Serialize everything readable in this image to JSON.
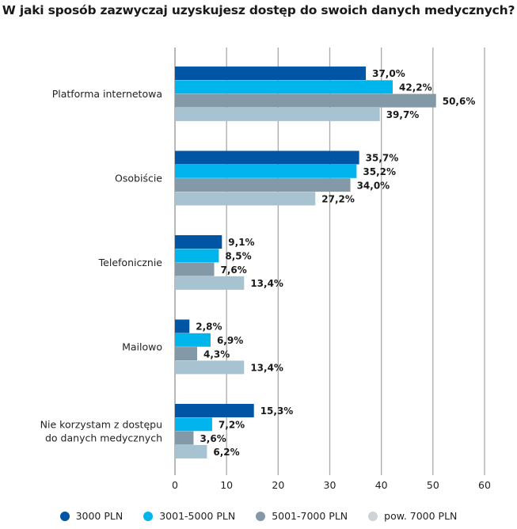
{
  "chart_data": {
    "type": "bar",
    "orientation": "horizontal",
    "title": "W jaki sposób zazwyczaj uzyskujesz dostęp do swoich danych medycznych?",
    "xlabel": "",
    "ylabel": "",
    "xlim": [
      0,
      60
    ],
    "x_ticks": [
      "0",
      "10",
      "20",
      "30",
      "40",
      "50",
      "60"
    ],
    "x_tick_values": [
      0,
      10,
      20,
      30,
      40,
      50,
      60
    ],
    "grid": "vertical",
    "legend_position": "bottom",
    "categories": [
      [
        "Platforma internetowa"
      ],
      [
        "Osobiście"
      ],
      [
        "Telefonicznie"
      ],
      [
        "Mailowo"
      ],
      [
        "Nie korzystam z dostępu",
        "do danych medycznych"
      ]
    ],
    "series": [
      {
        "name": "3000 PLN",
        "color": "#0055a4",
        "values": [
          37.0,
          35.7,
          9.1,
          2.8,
          15.3
        ],
        "labels": [
          "37,0%",
          "35,7%",
          "9,1%",
          "2,8%",
          "15,3%"
        ]
      },
      {
        "name": "3001-5000 PLN",
        "color": "#00b5ec",
        "values": [
          42.2,
          35.2,
          8.5,
          6.9,
          7.2
        ],
        "labels": [
          "42,2%",
          "35,2%",
          "8,5%",
          "6,9%",
          "7,2%"
        ]
      },
      {
        "name": "5001-7000 PLN",
        "color": "#8499a7",
        "values": [
          50.6,
          34.0,
          7.6,
          4.3,
          3.6
        ],
        "labels": [
          "50,6%",
          "34,0%",
          "7,6%",
          "4,3%",
          "3,6%"
        ]
      },
      {
        "name": "pow. 7000 PLN",
        "color": "#a7c3d2",
        "legend_color": "#cfd3d6",
        "values": [
          39.7,
          27.2,
          13.4,
          13.4,
          6.2
        ],
        "labels": [
          "39,7%",
          "27,2%",
          "13,4%",
          "13,4%",
          "6,2%"
        ]
      }
    ]
  }
}
